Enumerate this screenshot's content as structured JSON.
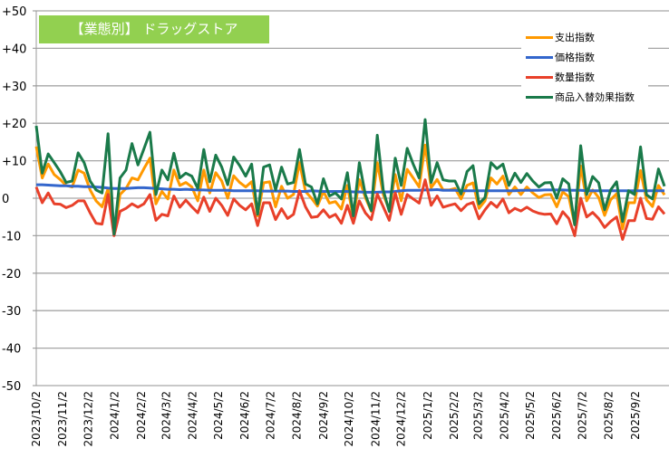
{
  "chart_data": {
    "type": "line",
    "title": "【業態別】 ドラッグストア",
    "xlabel": "",
    "ylabel": "",
    "ylim": [
      -50,
      50
    ],
    "yticks": [
      "+50",
      "+40",
      "+30",
      "+20",
      "+10",
      "0",
      "-10",
      "-20",
      "-30",
      "-40",
      "-50"
    ],
    "ytick_values": [
      50,
      40,
      30,
      20,
      10,
      0,
      -10,
      -20,
      -30,
      -40,
      -50
    ],
    "xtick_labels": [
      "2023/10/2",
      "2023/11/2",
      "2023/12/2",
      "2024/1/2",
      "2024/2/2",
      "2024/3/2",
      "2024/4/2",
      "2024/5/2",
      "2024/6/2",
      "2024/7/2",
      "2024/8/2",
      "2024/9/2",
      "2024/10/2",
      "2024/11/2",
      "2024/12/2",
      "2025/1/2",
      "2025/2/2",
      "2025/3/2",
      "2025/4/2",
      "2025/5/2",
      "2025/6/2",
      "2025/7/2",
      "2025/8/2",
      "2025/9/2"
    ],
    "x_frequency": "weekly",
    "grid": "horizontal",
    "legend_position": "top-right",
    "series": [
      {
        "name": "支出指数",
        "color": "#ff9900",
        "values": [
          13.8,
          5.4,
          9.1,
          6.3,
          5,
          3.4,
          3,
          7.5,
          6.7,
          2.2,
          -0.7,
          -2.3,
          2.6,
          -9.6,
          1,
          2.6,
          5.4,
          4.9,
          7.9,
          10.7,
          -1.5,
          1.8,
          -0.2,
          7.5,
          3.4,
          4.2,
          3,
          -0.7,
          7.5,
          1.4,
          6.8,
          4.6,
          0,
          6,
          4.2,
          3,
          4.4,
          -4.7,
          4.1,
          4.4,
          -2.3,
          3.2,
          0,
          1,
          9.5,
          1.8,
          0,
          -2.1,
          1.8,
          -1.3,
          -0.9,
          -2.9,
          3.4,
          -5.4,
          5,
          0.2,
          -3.5,
          9.5,
          1,
          -3.1,
          6.3,
          -0.7,
          7.7,
          5.4,
          3,
          14.2,
          2.8,
          5,
          2.2,
          2.2,
          2.6,
          -0.2,
          3.4,
          4.1,
          -2.7,
          -0.7,
          5.4,
          3.8,
          5.9,
          1,
          3,
          1,
          3,
          1.4,
          0.2,
          0.9,
          1,
          -2.3,
          1.7,
          0.4,
          -7.1,
          8.6,
          -0.7,
          2.2,
          0.2,
          -4.6,
          -0.4,
          1.2,
          -8.2,
          -1.2,
          -1.2,
          7.4,
          -0.4,
          -2.2,
          3.4,
          0.9
        ]
      },
      {
        "name": "価格指数",
        "color": "#3366cc",
        "values": [
          3.6,
          3.6,
          3.5,
          3.4,
          3.3,
          3.3,
          3.2,
          3.2,
          3.1,
          3.1,
          3.0,
          2.9,
          2.7,
          2.6,
          2.6,
          2.6,
          2.7,
          2.8,
          2.8,
          2.7,
          2.6,
          2.5,
          2.4,
          2.4,
          2.3,
          2.4,
          2.3,
          2.2,
          2.2,
          2.1,
          2.1,
          2.1,
          2.1,
          2.0,
          2.0,
          2.0,
          2.0,
          2.0,
          1.9,
          1.9,
          1.9,
          1.9,
          1.9,
          1.8,
          1.8,
          1.8,
          2.0,
          1.9,
          1.8,
          1.8,
          1.8,
          1.8,
          1.8,
          1.7,
          1.7,
          1.6,
          1.6,
          1.6,
          1.7,
          1.7,
          1.8,
          2.0,
          2.1,
          2.1,
          2.1,
          2.2,
          2.2,
          2.3,
          2.1,
          2.1,
          2.1,
          2.0,
          2.0,
          2.0,
          2.0,
          2.0,
          2.0,
          2.0,
          2.0,
          2.0,
          2.0,
          2.1,
          2.1,
          2.1,
          2.1,
          2.2,
          2.2,
          2.2,
          2.2,
          2.1,
          2.1,
          2.1,
          2.0,
          2.0,
          2.0,
          2.0,
          2.0,
          2.0,
          2.0,
          2.0,
          2.0,
          2.0,
          2.0,
          2.0,
          2.0,
          2.0
        ]
      },
      {
        "name": "数量指数",
        "color": "#e8402a",
        "values": [
          3,
          -1.2,
          1.4,
          -1.5,
          -1.6,
          -2.5,
          -1.9,
          -0.7,
          -0.7,
          -3.9,
          -6.7,
          -6.9,
          1,
          -10,
          -3.5,
          -2.7,
          -1.5,
          -2.4,
          -1.5,
          1,
          -5.9,
          -4.3,
          -4.7,
          0.6,
          -2.4,
          -0.5,
          -2.3,
          -3.9,
          0.3,
          -3.5,
          0,
          -1.9,
          -4.6,
          -0.2,
          -1.9,
          -3.1,
          -1.5,
          -7.3,
          -1.2,
          -1.2,
          -5.7,
          -2.8,
          -5.4,
          -4.3,
          2,
          -2.3,
          -5.1,
          -4.9,
          -3.1,
          -5.1,
          -4.3,
          -6.7,
          -1.9,
          -6.7,
          -0.7,
          -3.9,
          -5.7,
          1.1,
          -2.3,
          -5.9,
          1.4,
          -4.3,
          1,
          -0.2,
          -1.3,
          4.9,
          -1.9,
          0.6,
          -2.4,
          -1.9,
          -1.5,
          -3.3,
          -1.7,
          -1.1,
          -5.5,
          -3.1,
          -1.1,
          -2.4,
          -0.2,
          -3.9,
          -2.7,
          -3.4,
          -2.4,
          -3.4,
          -4,
          -4.3,
          -4.2,
          -6.8,
          -3.6,
          -5.4,
          -10,
          0,
          -5,
          -3.8,
          -5.4,
          -7.8,
          -6.2,
          -5,
          -11,
          -6,
          -6,
          0,
          -5.4,
          -5.6,
          -2.3,
          -4.2
        ]
      },
      {
        "name": "商品入替効果指数",
        "color": "#1a7a4a",
        "values": [
          19.3,
          6.7,
          11.8,
          9.5,
          7.1,
          4.2,
          4.6,
          12.1,
          9.5,
          4.6,
          2.2,
          1.4,
          17.2,
          -9.6,
          5.4,
          7.5,
          14.6,
          8.9,
          13.2,
          17.6,
          1,
          7.5,
          4.9,
          12,
          5.4,
          6.7,
          5.9,
          2.6,
          13,
          4.4,
          11.5,
          8.3,
          3.6,
          11,
          8.7,
          5.9,
          9.1,
          -4.3,
          8.3,
          8.9,
          2.2,
          8.3,
          3.8,
          4.2,
          13,
          3.8,
          3,
          -1.5,
          5.2,
          0.6,
          1.4,
          -0.2,
          6.8,
          -4.7,
          9.5,
          1,
          -3.3,
          16.8,
          2.2,
          -3.5,
          10.7,
          3.4,
          13.3,
          9.1,
          5.4,
          21,
          4.2,
          9.5,
          4.9,
          4.6,
          4.6,
          1.1,
          7.1,
          8.7,
          -1.5,
          0.2,
          9.5,
          7.9,
          9.1,
          3.4,
          6.7,
          4.2,
          6.6,
          4.6,
          3,
          4.1,
          4.2,
          0,
          5.2,
          3.8,
          -7.1,
          14,
          1,
          5.8,
          4.1,
          -3.1,
          2.2,
          4.4,
          -6.2,
          2,
          1,
          13.7,
          0.9,
          -0.2,
          7.8,
          3.2
        ]
      }
    ]
  }
}
